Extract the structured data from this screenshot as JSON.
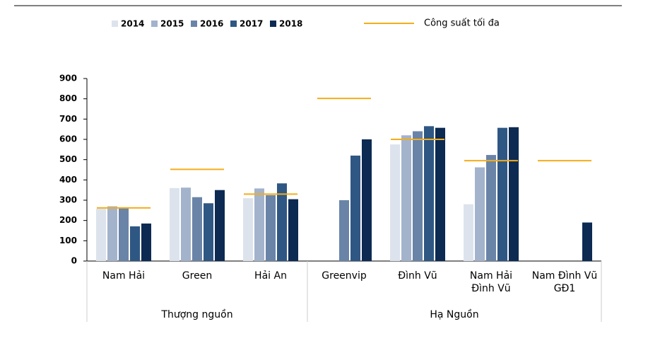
{
  "chart_data": {
    "type": "bar",
    "categories": [
      "Nam Hải",
      "Green",
      "Hải An",
      "Greenvip",
      "Đình Vũ",
      "Nam Hải\nĐình Vũ",
      "Nam Đình Vũ\nGĐ1"
    ],
    "groups": [
      {
        "label": "Thượng nguồn",
        "count": 3
      },
      {
        "label": "Hạ Nguồn",
        "count": 4
      }
    ],
    "series": [
      {
        "name": "2014",
        "color": "#dde3ec",
        "values": [
          258,
          360,
          310,
          null,
          575,
          280,
          null
        ]
      },
      {
        "name": "2015",
        "color": "#a3b3cc",
        "values": [
          270,
          362,
          358,
          null,
          620,
          462,
          null
        ]
      },
      {
        "name": "2016",
        "color": "#6a84a8",
        "values": [
          260,
          315,
          325,
          300,
          640,
          523,
          null
        ]
      },
      {
        "name": "2017",
        "color": "#2f5783",
        "values": [
          171,
          285,
          383,
          520,
          665,
          657,
          null
        ]
      },
      {
        "name": "2018",
        "color": "#0c2a52",
        "values": [
          185,
          350,
          305,
          600,
          657,
          660,
          190
        ]
      }
    ],
    "capacity": {
      "name": "Công suất tối đa",
      "color": "#f4ad1a",
      "values": [
        262,
        452,
        330,
        802,
        600,
        495,
        495
      ]
    },
    "ylim": [
      0,
      900
    ],
    "yticks": [
      0,
      100,
      200,
      300,
      400,
      500,
      600,
      700,
      800,
      900
    ]
  }
}
